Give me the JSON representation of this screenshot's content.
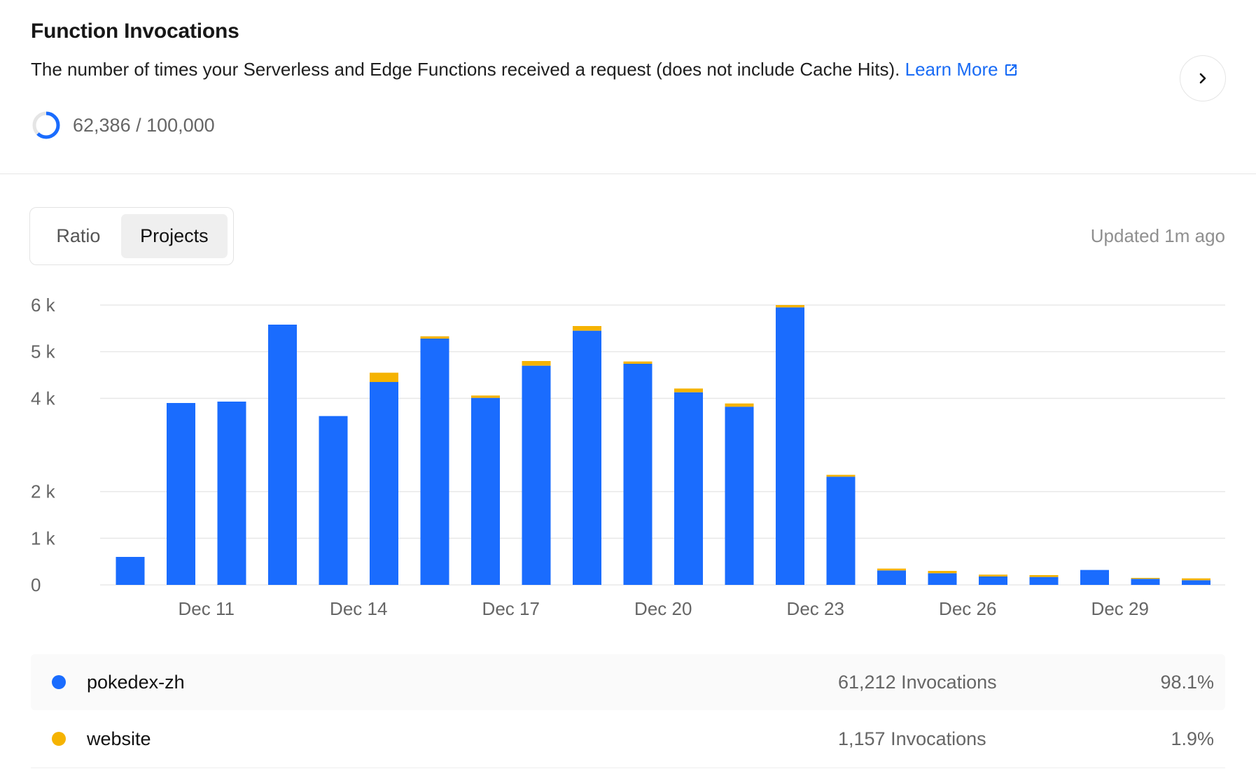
{
  "header": {
    "title": "Function Invocations",
    "description": "The number of times your Serverless and Edge Functions received a request (does not include Cache Hits).",
    "learn_more": "Learn More"
  },
  "usage": {
    "text": "62,386 / 100,000",
    "used": 62386,
    "limit": 100000
  },
  "toggle": {
    "options": [
      "Ratio",
      "Projects"
    ],
    "active": "Projects"
  },
  "updated": "Updated 1m ago",
  "colors": {
    "primary": "#1a6cfe",
    "secondary": "#f5b301"
  },
  "legend": [
    {
      "name": "pokedex-zh",
      "count": "61,212 Invocations",
      "percent": "98.1%",
      "color": "#1a6cfe"
    },
    {
      "name": "website",
      "count": "1,157 Invocations",
      "percent": "1.9%",
      "color": "#f5b301"
    }
  ],
  "chart_data": {
    "type": "bar",
    "stacked": true,
    "categories": [
      "Dec 10",
      "Dec 11",
      "Dec 12",
      "Dec 13",
      "Dec 14",
      "Dec 15",
      "Dec 16",
      "Dec 17",
      "Dec 18",
      "Dec 19",
      "Dec 20",
      "Dec 21",
      "Dec 22",
      "Dec 23",
      "Dec 24",
      "Dec 25",
      "Dec 26",
      "Dec 27",
      "Dec 28",
      "Dec 29",
      "Dec 30",
      "Dec 31"
    ],
    "tick_labels": [
      "Dec 11",
      "Dec 14",
      "Dec 17",
      "Dec 20",
      "Dec 23",
      "Dec 26",
      "Dec 29"
    ],
    "y_ticks": [
      "0",
      "1 k",
      "2 k",
      "4 k",
      "5 k",
      "6 k"
    ],
    "ylim": [
      0,
      6000
    ],
    "grid": true,
    "series": [
      {
        "name": "pokedex-zh",
        "values": [
          600,
          3900,
          3930,
          5580,
          3620,
          4350,
          5280,
          4010,
          4700,
          5450,
          4740,
          4130,
          3820,
          5950,
          2320,
          310,
          250,
          180,
          170,
          320,
          130,
          100
        ]
      },
      {
        "name": "website",
        "values": [
          0,
          0,
          0,
          0,
          0,
          200,
          50,
          50,
          100,
          100,
          50,
          80,
          70,
          50,
          40,
          40,
          50,
          40,
          40,
          0,
          20,
          40
        ]
      }
    ]
  }
}
